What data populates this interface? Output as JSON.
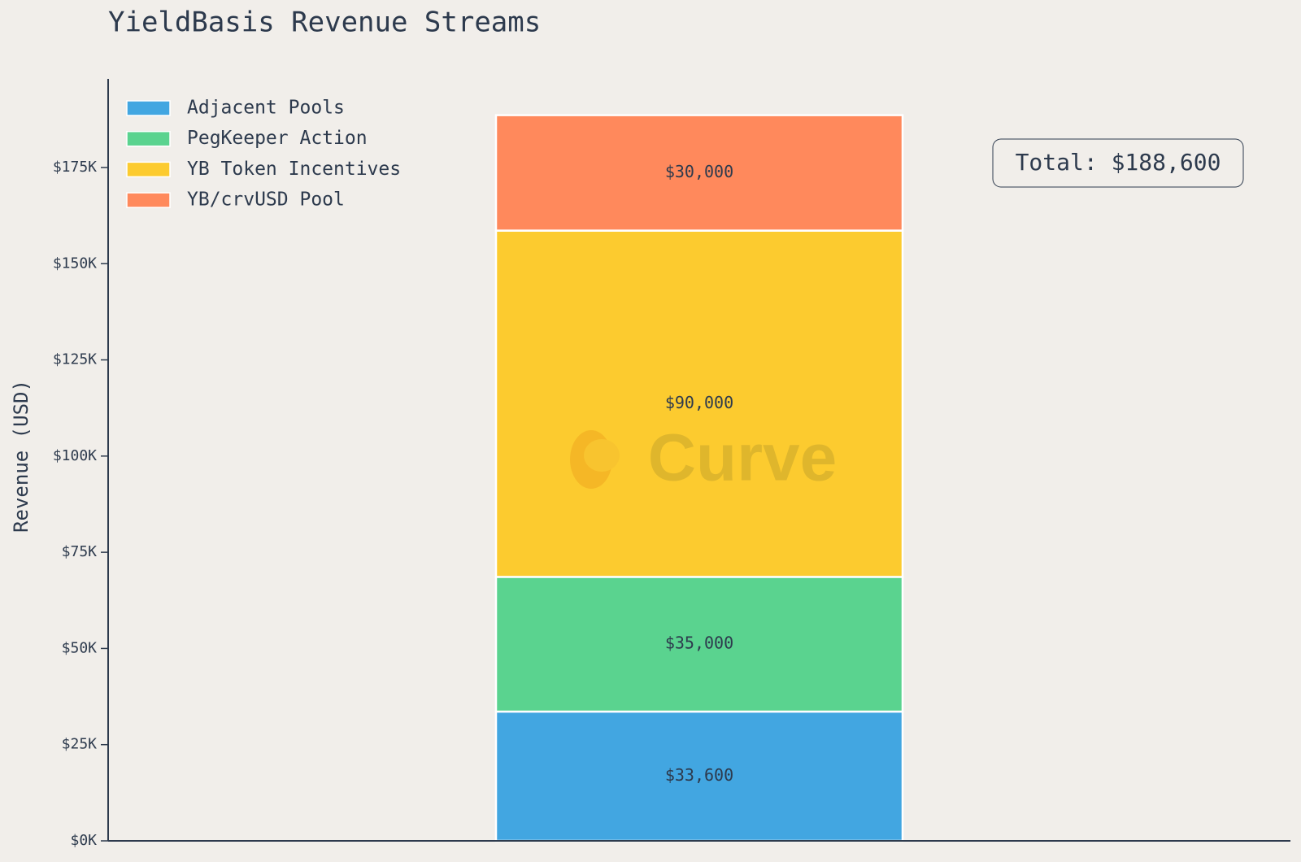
{
  "chart_data": {
    "type": "stacked_bar",
    "title": "YieldBasis Revenue Streams",
    "y_label": "Revenue (USD)",
    "categories": [
      null
    ],
    "series": [
      {
        "name": "Adjacent Pools",
        "color": "#42a6e1",
        "values": [
          33600
        ],
        "value_labels": [
          "$33,600"
        ]
      },
      {
        "name": "PegKeeper Action",
        "color": "#5ad38f",
        "values": [
          35000
        ],
        "value_labels": [
          "$35,000"
        ]
      },
      {
        "name": "YB Token Incentives",
        "color": "#fccb2f",
        "values": [
          90000
        ],
        "value_labels": [
          "$90,000"
        ]
      },
      {
        "name": "YB/crvUSD Pool",
        "color": "#ff895c",
        "values": [
          30000
        ],
        "value_labels": [
          "$30,000"
        ]
      }
    ],
    "ylim": [
      0,
      198030
    ],
    "yticks": [
      {
        "value": 0,
        "label": "$0K"
      },
      {
        "value": 25000,
        "label": "$25K"
      },
      {
        "value": 50000,
        "label": "$50K"
      },
      {
        "value": 75000,
        "label": "$75K"
      },
      {
        "value": 100000,
        "label": "$100K"
      },
      {
        "value": 125000,
        "label": "$125K"
      },
      {
        "value": 150000,
        "label": "$150K"
      },
      {
        "value": 175000,
        "label": "$175K"
      }
    ],
    "grid": false,
    "legend": "upper left",
    "annotation": "Total: $188,600",
    "watermark": "Curve"
  }
}
